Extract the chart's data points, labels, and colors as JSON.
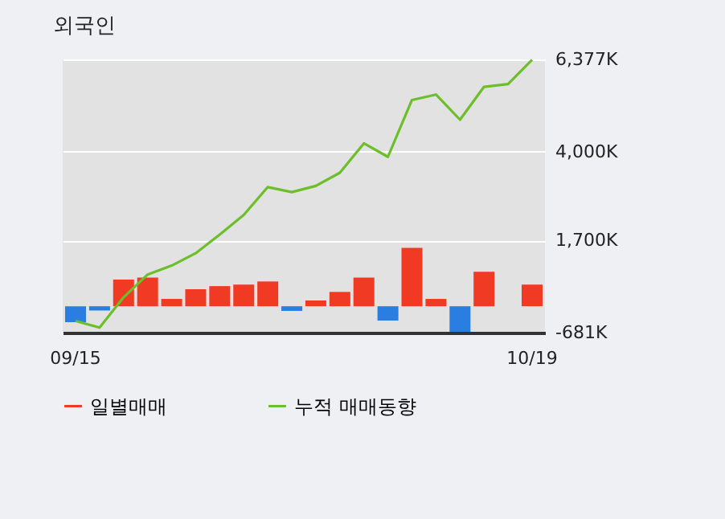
{
  "chart_data": {
    "type": "bar",
    "title": "외국인",
    "categories": [
      "09/15",
      null,
      null,
      null,
      null,
      null,
      null,
      null,
      null,
      null,
      null,
      null,
      null,
      null,
      null,
      null,
      null,
      null,
      null,
      "10/19"
    ],
    "series": [
      {
        "name": "일별매매",
        "values": [
          -410,
          -110,
          690,
          740,
          190,
          440,
          520,
          560,
          640,
          -120,
          150,
          370,
          740,
          -370,
          1510,
          190,
          -660,
          890,
          0,
          560
        ],
        "colors": [
          "#2a7de1",
          "#2a7de1",
          "#f03a24",
          "#f03a24",
          "#f03a24",
          "#f03a24",
          "#f03a24",
          "#f03a24",
          "#f03a24",
          "#2a7de1",
          "#f03a24",
          "#f03a24",
          "#f03a24",
          "#2a7de1",
          "#f03a24",
          "#f03a24",
          "#2a7de1",
          "#f03a24",
          "#f03a24",
          "#f03a24"
        ],
        "color": "#f03a24"
      },
      {
        "name": "누적 매매동향",
        "type": "line",
        "color": "#6cbf2a",
        "values": [
          -380,
          -550,
          230,
          820,
          1050,
          1370,
          1850,
          2360,
          3080,
          2950,
          3110,
          3450,
          4210,
          3860,
          5330,
          5470,
          4820,
          5670,
          5740,
          6370
        ]
      }
    ],
    "ylim": [
      -681,
      6377
    ],
    "yticks": [
      {
        "value": -681,
        "label": "-681K"
      },
      {
        "value": 1700,
        "label": "1,700K"
      },
      {
        "value": 4000,
        "label": "4,000K"
      },
      {
        "value": 6377,
        "label": "6,377K"
      }
    ],
    "grid": "y",
    "legend": "bottom"
  }
}
